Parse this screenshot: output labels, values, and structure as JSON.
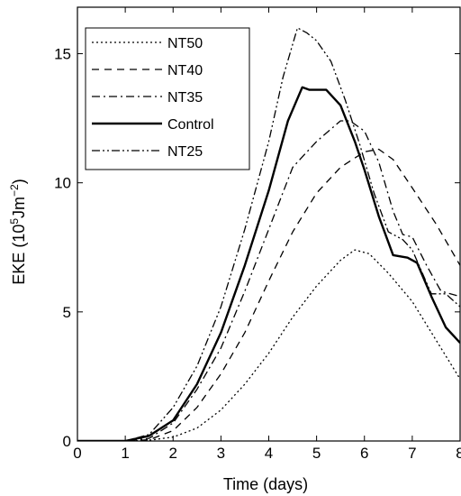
{
  "chart_data": {
    "type": "line",
    "xlabel": "Time (days)",
    "ylabel": {
      "prefix": "EKE (10",
      "sup1": "5",
      "mid": "Jm",
      "sup2": "−2",
      "suffix": ")"
    },
    "xlim": [
      0,
      8
    ],
    "ylim": [
      0,
      16.8
    ],
    "xticks": [
      0,
      1,
      2,
      3,
      4,
      5,
      6,
      7,
      8
    ],
    "yticks": [
      0,
      5,
      10,
      15
    ],
    "grid": false,
    "legend_position": "top-left",
    "series": [
      {
        "name": "NT50",
        "dash": "2 3",
        "stroke_width": 1.3,
        "points": [
          [
            0,
            0
          ],
          [
            1,
            0
          ],
          [
            1.5,
            0.03
          ],
          [
            2,
            0.15
          ],
          [
            2.5,
            0.5
          ],
          [
            3,
            1.2
          ],
          [
            3.5,
            2.2
          ],
          [
            4,
            3.4
          ],
          [
            4.5,
            4.8
          ],
          [
            5,
            6.0
          ],
          [
            5.5,
            7.0
          ],
          [
            5.8,
            7.4
          ],
          [
            6.1,
            7.25
          ],
          [
            6.5,
            6.5
          ],
          [
            7,
            5.4
          ],
          [
            7.5,
            3.9
          ],
          [
            8,
            2.4
          ]
        ]
      },
      {
        "name": "NT40",
        "dash": "8 6",
        "stroke_width": 1.3,
        "points": [
          [
            0,
            0
          ],
          [
            1,
            0
          ],
          [
            1.5,
            0.05
          ],
          [
            2,
            0.4
          ],
          [
            2.5,
            1.3
          ],
          [
            3,
            2.6
          ],
          [
            3.5,
            4.2
          ],
          [
            4,
            6.2
          ],
          [
            4.5,
            8.1
          ],
          [
            5,
            9.6
          ],
          [
            5.5,
            10.6
          ],
          [
            6,
            11.2
          ],
          [
            6.3,
            11.3
          ],
          [
            6.6,
            10.9
          ],
          [
            7,
            9.8
          ],
          [
            7.5,
            8.4
          ],
          [
            8,
            6.8
          ]
        ]
      },
      {
        "name": "NT35",
        "dash": "9 4 2 4",
        "stroke_width": 1.3,
        "points": [
          [
            0,
            0
          ],
          [
            1,
            0
          ],
          [
            1.5,
            0.1
          ],
          [
            2,
            0.7
          ],
          [
            2.5,
            2.0
          ],
          [
            3,
            3.6
          ],
          [
            3.5,
            5.8
          ],
          [
            4,
            8.2
          ],
          [
            4.5,
            10.6
          ],
          [
            5,
            11.6
          ],
          [
            5.5,
            12.4
          ],
          [
            5.7,
            12.4
          ],
          [
            6,
            12.0
          ],
          [
            6.3,
            10.8
          ],
          [
            6.6,
            8.9
          ],
          [
            6.8,
            8.0
          ],
          [
            7,
            7.9
          ],
          [
            7.3,
            6.8
          ],
          [
            7.6,
            5.8
          ],
          [
            8,
            5.6
          ]
        ]
      },
      {
        "name": "Control",
        "dash": "",
        "stroke_width": 2.4,
        "points": [
          [
            0,
            0
          ],
          [
            1,
            0
          ],
          [
            1.5,
            0.2
          ],
          [
            2,
            0.8
          ],
          [
            2.5,
            2.2
          ],
          [
            3,
            4.2
          ],
          [
            3.5,
            6.8
          ],
          [
            4,
            9.7
          ],
          [
            4.4,
            12.4
          ],
          [
            4.7,
            13.7
          ],
          [
            4.85,
            13.6
          ],
          [
            5,
            13.6
          ],
          [
            5.2,
            13.6
          ],
          [
            5.5,
            13.0
          ],
          [
            5.8,
            11.6
          ],
          [
            6,
            10.5
          ],
          [
            6.3,
            8.7
          ],
          [
            6.6,
            7.2
          ],
          [
            6.9,
            7.1
          ],
          [
            7.1,
            6.9
          ],
          [
            7.4,
            5.6
          ],
          [
            7.7,
            4.4
          ],
          [
            8,
            3.8
          ]
        ]
      },
      {
        "name": "NT25",
        "dash": "9 3 2 3 2 3",
        "stroke_width": 1.3,
        "points": [
          [
            0,
            0
          ],
          [
            1,
            0
          ],
          [
            1.5,
            0.25
          ],
          [
            2,
            1.3
          ],
          [
            2.5,
            2.9
          ],
          [
            3,
            5.2
          ],
          [
            3.5,
            8.2
          ],
          [
            4,
            11.6
          ],
          [
            4.3,
            14.1
          ],
          [
            4.6,
            16.0
          ],
          [
            4.8,
            15.8
          ],
          [
            5,
            15.5
          ],
          [
            5.3,
            14.7
          ],
          [
            5.6,
            13.2
          ],
          [
            5.9,
            11.5
          ],
          [
            6.2,
            9.6
          ],
          [
            6.5,
            8.1
          ],
          [
            6.8,
            7.8
          ],
          [
            7,
            7.4
          ],
          [
            7.4,
            5.7
          ],
          [
            7.7,
            5.7
          ],
          [
            8,
            5.2
          ]
        ]
      }
    ]
  }
}
